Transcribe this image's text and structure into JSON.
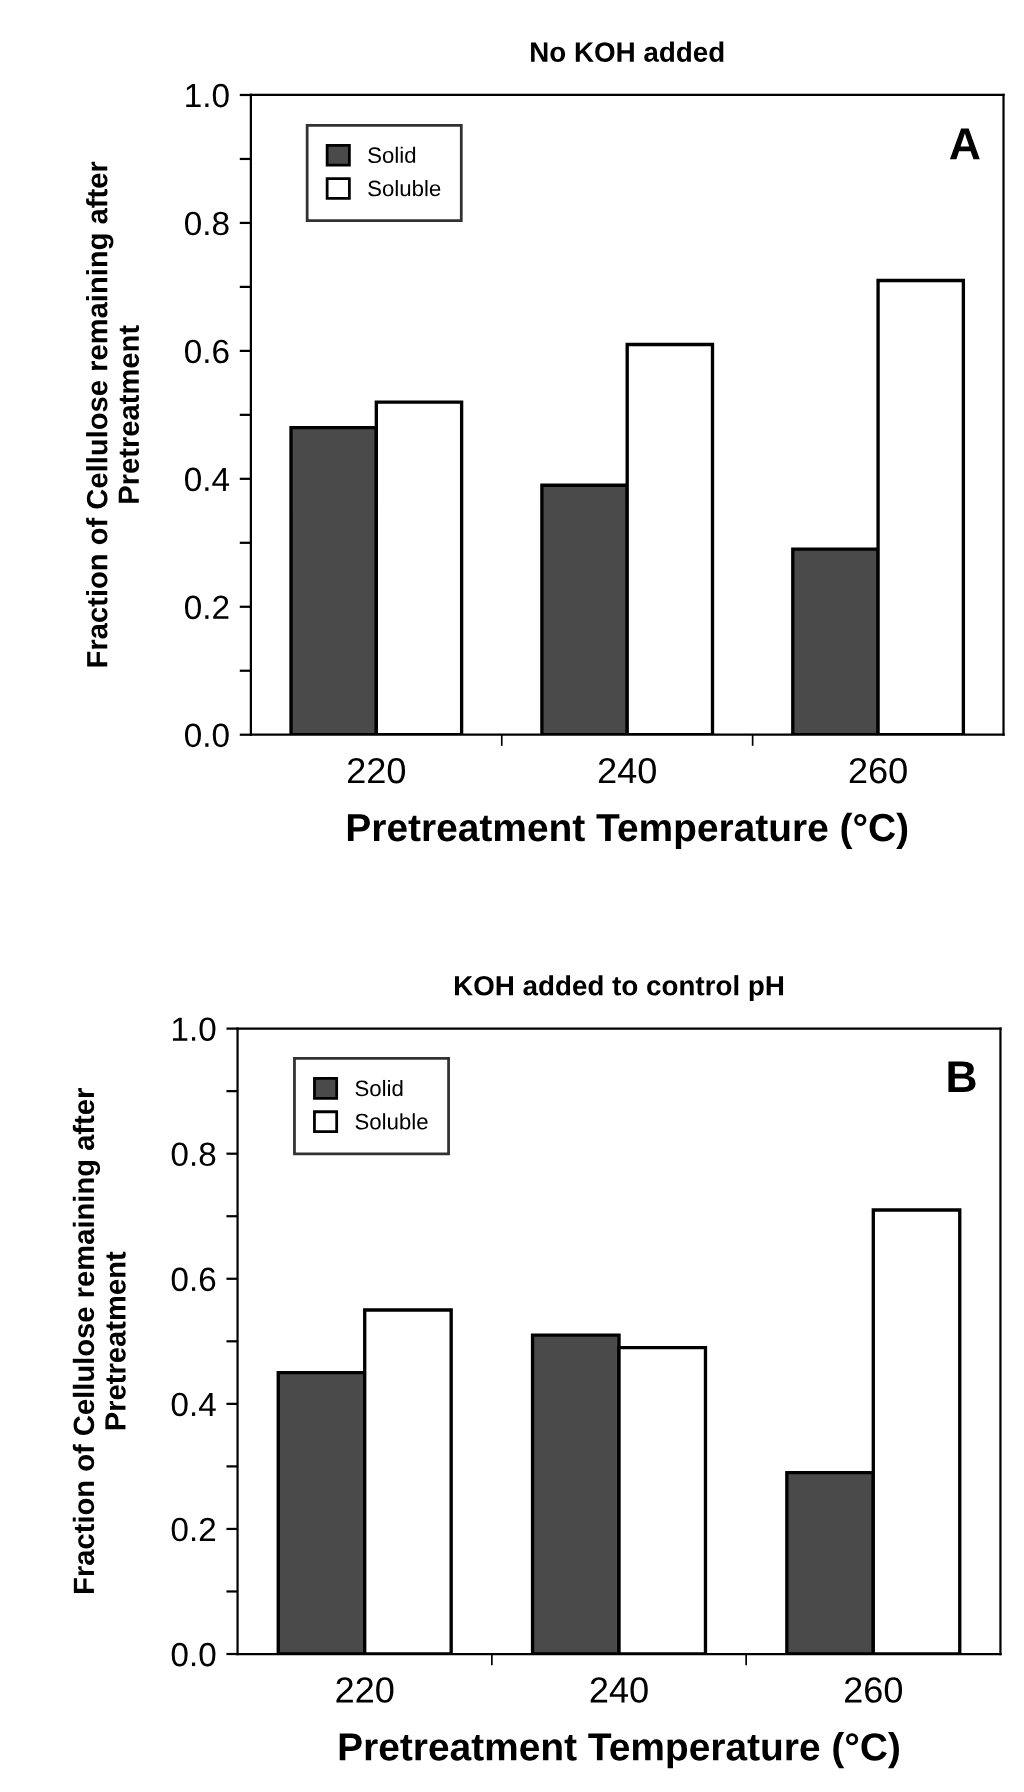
{
  "chart_data": [
    {
      "type": "bar",
      "title": "No KOH added",
      "xlabel": "Pretreatment Temperature (°C)",
      "ylabel": "Fraction of Cellulose remaining after\nPretreatment",
      "annotations": [
        "A"
      ],
      "categories": [
        "220",
        "240",
        "260"
      ],
      "series": [
        {
          "name": "Solid",
          "color": "#4a4a4a",
          "values": [
            0.48,
            0.39,
            0.29
          ]
        },
        {
          "name": "Soluble",
          "color": "#ffffff",
          "values": [
            0.52,
            0.61,
            0.71
          ]
        }
      ],
      "ylim": [
        0,
        1.0
      ],
      "yticks": [
        {
          "value": 0,
          "label": "0.0"
        },
        {
          "value": 0.1,
          "label": null
        },
        0.2,
        {
          "value": 0.3,
          "label": null
        },
        0.4,
        {
          "value": 0.5,
          "label": null
        },
        0.6,
        {
          "value": 0.7,
          "label": null
        },
        0.8,
        {
          "value": 0.9,
          "label": null
        },
        {
          "value": 1.0,
          "label": "1.0"
        }
      ],
      "legend": "top left",
      "grid": false
    },
    {
      "type": "bar",
      "title": "KOH added to control pH",
      "xlabel": "Pretreatment Temperature (°C)",
      "ylabel": "Fraction of Cellulose remaining after\nPretreatment",
      "annotations": [
        "B"
      ],
      "categories": [
        "220",
        "240",
        "260"
      ],
      "series": [
        {
          "name": "Solid",
          "color": "#4a4a4a",
          "values": [
            0.45,
            0.51,
            0.29
          ]
        },
        {
          "name": "Soluble",
          "color": "#ffffff",
          "values": [
            0.55,
            0.49,
            0.71
          ]
        }
      ],
      "ylim": [
        0,
        1.0
      ],
      "yticks": [
        {
          "value": 0,
          "label": "0.0"
        },
        {
          "value": 0.1,
          "label": null
        },
        0.2,
        {
          "value": 0.3,
          "label": null
        },
        0.4,
        {
          "value": 0.5,
          "label": null
        },
        0.6,
        {
          "value": 0.7,
          "label": null
        },
        0.8,
        {
          "value": 0.9,
          "label": null
        },
        {
          "value": 1.0,
          "label": "1.0"
        }
      ],
      "legend": "top left",
      "grid": false
    }
  ]
}
